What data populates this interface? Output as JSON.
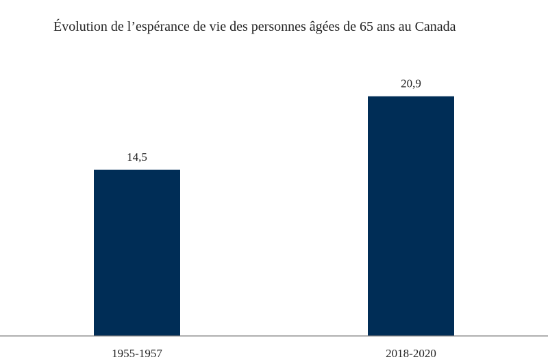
{
  "chart_data": {
    "type": "bar",
    "title": "Évolution de l’espérance de vie des personnes âgées de 65 ans au Canada",
    "categories": [
      "1955-1957",
      "2018-2020"
    ],
    "values": [
      14.5,
      20.9
    ],
    "value_labels": [
      "14,5",
      "20,9"
    ],
    "ylim": [
      0,
      25
    ],
    "xlabel": "",
    "ylabel": "",
    "grid": false,
    "legend": "none",
    "colors": {
      "bar": "#002d56",
      "axis": "#7f7f7f",
      "text": "#222222"
    }
  }
}
